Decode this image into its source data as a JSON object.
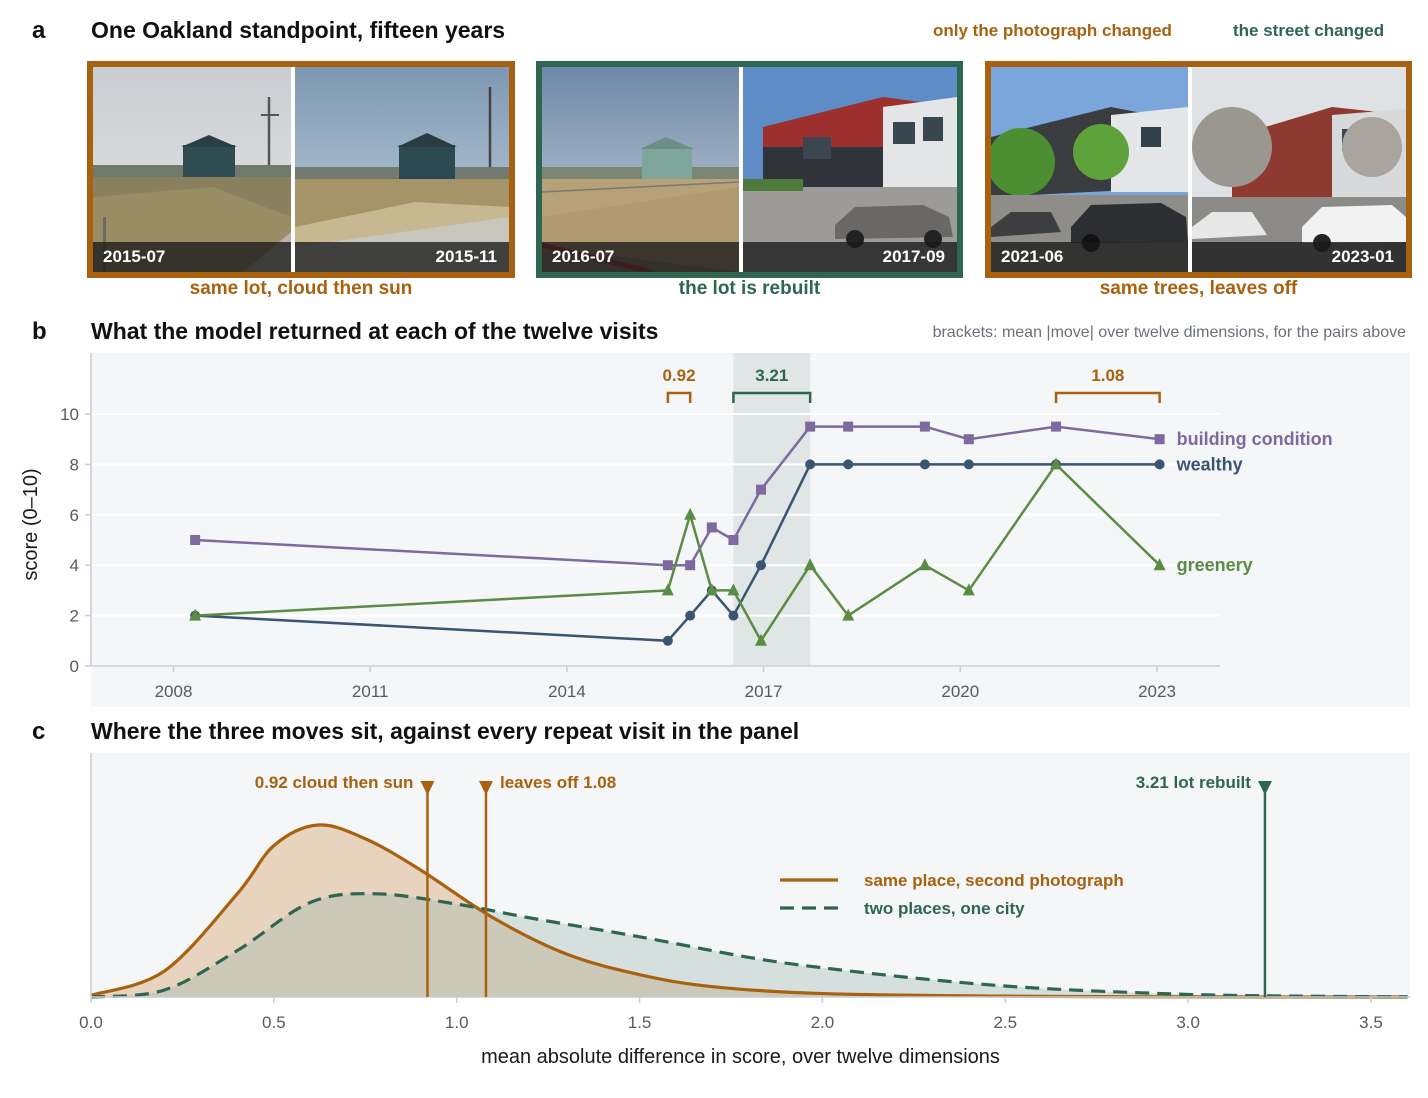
{
  "panels": {
    "a": {
      "letter": "a",
      "title": "One Oakland standpoint, fifteen years",
      "legend": {
        "photo_changed": "only the photograph changed",
        "street_changed": "the street changed"
      },
      "pairs": [
        {
          "kind": "photo",
          "left_date": "2015-07",
          "right_date": "2015-11",
          "caption": "same lot, cloud then sun"
        },
        {
          "kind": "street",
          "left_date": "2016-07",
          "right_date": "2017-09",
          "caption": "the lot is rebuilt"
        },
        {
          "kind": "photo",
          "left_date": "2021-06",
          "right_date": "2023-01",
          "caption": "same trees, leaves off"
        }
      ]
    },
    "b": {
      "letter": "b",
      "title": "What the model returned at each of the twelve visits",
      "note": "brackets: mean |move| over twelve dimensions, for the pairs above"
    },
    "c": {
      "letter": "c",
      "title": "Where the three moves sit, against every repeat visit in the panel"
    }
  },
  "colors": {
    "photo": "#a8620f",
    "street": "#2e6650",
    "building": "#7e6a9e",
    "wealthy": "#3a5472",
    "greenery": "#5b8c45",
    "plot_bg": "#f4f6f8",
    "axis": "#c8ced6",
    "tick_text": "#555b63"
  },
  "icons": {
    "building": "square-marker",
    "wealthy": "circle-marker",
    "greenery": "triangle-marker",
    "move_marker": "down-triangle-marker"
  },
  "chart_data": [
    {
      "type": "line",
      "ylabel": "score (0–10)",
      "xlabel": "",
      "ylim": [
        0,
        12
      ],
      "yticks": [
        0,
        2,
        4,
        6,
        8,
        10
      ],
      "xticks": [
        2008,
        2011,
        2014,
        2017,
        2020,
        2023
      ],
      "grid": "horizontal",
      "x": [
        2008.33,
        2015.54,
        2015.88,
        2016.21,
        2016.54,
        2016.96,
        2017.71,
        2018.29,
        2019.46,
        2020.13,
        2021.46,
        2023.04
      ],
      "series": [
        {
          "name": "building condition",
          "marker": "square",
          "values": [
            5,
            4,
            4,
            5.5,
            5,
            7,
            9.5,
            9.5,
            9.5,
            9,
            9.5,
            9
          ]
        },
        {
          "name": "wealthy",
          "marker": "circle",
          "values": [
            2,
            1,
            2,
            3,
            2,
            4,
            8,
            8,
            8,
            8,
            8,
            8
          ]
        },
        {
          "name": "greenery",
          "marker": "triangle",
          "values": [
            2,
            3,
            6,
            3,
            3,
            1,
            4,
            2,
            4,
            3,
            8,
            4
          ]
        }
      ],
      "shaded_span": [
        2016.54,
        2017.71
      ],
      "brackets": [
        {
          "x_from": 2015.54,
          "x_to": 2015.88,
          "label": "0.92",
          "kind": "photo"
        },
        {
          "x_from": 2016.54,
          "x_to": 2017.71,
          "label": "3.21",
          "kind": "street"
        },
        {
          "x_from": 2021.46,
          "x_to": 2023.04,
          "label": "1.08",
          "kind": "photo"
        }
      ]
    },
    {
      "type": "area",
      "xlabel": "mean absolute difference in score, over twelve dimensions",
      "ylabel": "",
      "xlim": [
        0,
        3.6
      ],
      "xticks": [
        0.0,
        0.5,
        1.0,
        1.5,
        2.0,
        2.5,
        3.0,
        3.5
      ],
      "xtick_labels": [
        "0.0",
        "0.5",
        "1.0",
        "1.5",
        "2.0",
        "2.5",
        "3.0",
        "3.5"
      ],
      "legend_position": "center-right",
      "series": [
        {
          "name": "same place, second photograph",
          "style": "solid",
          "x": [
            0.0,
            0.2,
            0.4,
            0.5,
            0.62,
            0.75,
            0.9,
            1.1,
            1.3,
            1.5,
            1.7,
            2.0,
            2.5,
            3.0,
            3.6
          ],
          "values": [
            0.01,
            0.15,
            0.6,
            0.88,
            1.0,
            0.92,
            0.74,
            0.46,
            0.25,
            0.13,
            0.06,
            0.02,
            0.005,
            0.001,
            0.0
          ]
        },
        {
          "name": "two places, one city",
          "style": "dashed",
          "x": [
            0.0,
            0.2,
            0.4,
            0.6,
            0.78,
            1.0,
            1.2,
            1.5,
            1.8,
            2.0,
            2.3,
            2.6,
            3.0,
            3.3,
            3.6
          ],
          "values": [
            0.0,
            0.04,
            0.27,
            0.55,
            0.6,
            0.54,
            0.46,
            0.35,
            0.23,
            0.17,
            0.1,
            0.05,
            0.015,
            0.005,
            0.001
          ]
        }
      ],
      "markers": [
        {
          "x": 0.92,
          "label": "0.92  cloud then sun",
          "kind": "photo",
          "label_side": "left"
        },
        {
          "x": 1.08,
          "label": "leaves off  1.08",
          "kind": "photo",
          "label_side": "right"
        },
        {
          "x": 3.21,
          "label": "3.21  lot rebuilt",
          "kind": "street",
          "label_side": "left"
        }
      ]
    }
  ]
}
